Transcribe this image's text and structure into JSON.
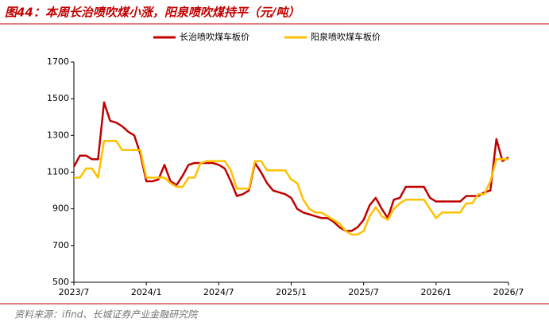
{
  "chart_data": {
    "type": "line",
    "title": "图44：本周长治喷吹煤小涨，阳泉喷吹煤持平（元/吨）",
    "source": "资料来源：ifind、长城证券产业金融研究院",
    "categories": [
      "2023/7",
      null,
      null,
      null,
      null,
      null,
      null,
      null,
      null,
      null,
      null,
      null,
      "2024/1",
      null,
      null,
      null,
      null,
      null,
      null,
      null,
      null,
      null,
      null,
      null,
      "2024/7",
      null,
      null,
      null,
      null,
      null,
      null,
      null,
      null,
      null,
      null,
      null,
      "2025/1",
      null,
      null,
      null,
      null,
      null,
      null,
      null,
      null,
      null,
      null,
      null,
      "2025/7",
      null,
      null,
      null,
      null,
      null,
      null,
      null,
      null,
      null,
      null,
      null,
      "2026/1",
      null,
      null,
      null,
      null,
      null,
      null,
      null,
      null,
      null,
      null,
      null,
      "2026/7"
    ],
    "series": [
      {
        "name": "长治喷吹煤车板价",
        "color": "#c00000",
        "values": [
          1130,
          1190,
          1190,
          1170,
          1170,
          1480,
          1380,
          1370,
          1350,
          1320,
          1300,
          1200,
          1050,
          1050,
          1060,
          1140,
          1050,
          1030,
          1080,
          1140,
          1150,
          1150,
          1150,
          1150,
          1140,
          1120,
          1050,
          970,
          980,
          1000,
          1150,
          1100,
          1040,
          1000,
          990,
          980,
          960,
          900,
          880,
          870,
          860,
          850,
          850,
          830,
          800,
          780,
          780,
          800,
          840,
          920,
          960,
          900,
          850,
          950,
          960,
          1020,
          1020,
          1020,
          1020,
          960,
          940,
          940,
          940,
          940,
          940,
          970,
          970,
          970,
          990,
          1000,
          1280,
          1160,
          1180
        ]
      },
      {
        "name": "阳泉喷吹煤车板价",
        "color": "#ffc000",
        "values": [
          1070,
          1070,
          1120,
          1120,
          1070,
          1270,
          1270,
          1270,
          1220,
          1220,
          1220,
          1220,
          1070,
          1070,
          1070,
          1070,
          1040,
          1020,
          1020,
          1070,
          1070,
          1150,
          1160,
          1160,
          1160,
          1160,
          1110,
          1010,
          1010,
          1010,
          1160,
          1160,
          1110,
          1110,
          1110,
          1110,
          1060,
          1040,
          950,
          900,
          880,
          880,
          860,
          840,
          820,
          780,
          760,
          760,
          780,
          860,
          910,
          860,
          840,
          900,
          930,
          950,
          950,
          950,
          950,
          900,
          850,
          880,
          880,
          880,
          880,
          930,
          930,
          980,
          980,
          1050,
          1170,
          1170,
          1170
        ]
      }
    ],
    "ylim": [
      500,
      1700
    ],
    "yticks": [
      500,
      700,
      900,
      1100,
      1300,
      1500,
      1700
    ],
    "legend": "top"
  }
}
